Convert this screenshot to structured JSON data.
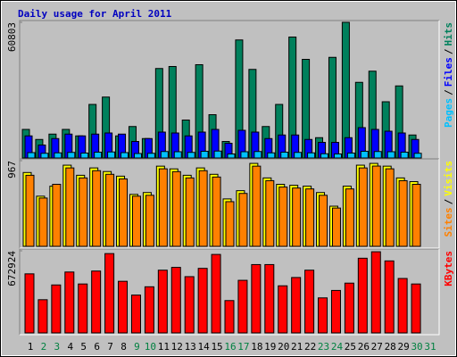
{
  "title": "Daily usage for April 2011",
  "legend_separator": "/",
  "chart_data": [
    {
      "type": "bar",
      "ylim": [
        0,
        60803
      ],
      "yticks": [
        60803
      ],
      "series": [
        {
          "name": "Pages",
          "color": "#00c0ff",
          "values": [
            2400,
            2100,
            2300,
            2500,
            2200,
            2600,
            2700,
            2400,
            2000,
            2100,
            2900,
            2800,
            2500,
            3000,
            3100,
            1800,
            2800,
            2900,
            2300,
            2600,
            2500,
            2300,
            1900,
            1800,
            2200,
            3000,
            2900,
            2800,
            2600,
            2100,
            null
          ]
        },
        {
          "name": "Files",
          "color": "#0000ff",
          "values": [
            9900,
            5800,
            8700,
            10700,
            9900,
            10700,
            11200,
            10700,
            7400,
            8700,
            11600,
            11200,
            9900,
            11600,
            12800,
            6600,
            12400,
            11600,
            8700,
            10300,
            10300,
            8300,
            7000,
            7000,
            9100,
            13600,
            12800,
            12000,
            11200,
            8300,
            null
          ]
        },
        {
          "name": "Hits",
          "color": "#00805c",
          "values": [
            12800,
            8300,
            10700,
            12800,
            9900,
            24000,
            27300,
            9900,
            14100,
            8700,
            40100,
            41000,
            17000,
            41800,
            19400,
            7400,
            52900,
            39700,
            14100,
            24000,
            54200,
            44200,
            9100,
            45100,
            60803,
            33900,
            38900,
            25200,
            32300,
            10300,
            null
          ]
        }
      ]
    },
    {
      "type": "bar",
      "ylim": [
        0,
        967
      ],
      "yticks": [
        967
      ],
      "series": [
        {
          "name": "Sites",
          "color": "#ff8000",
          "values": [
            802,
            545,
            700,
            885,
            772,
            854,
            813,
            761,
            566,
            576,
            875,
            843,
            772,
            854,
            782,
            504,
            597,
            905,
            741,
            669,
            658,
            648,
            576,
            432,
            648,
            885,
            906,
            875,
            741,
            700,
            null
          ]
        },
        {
          "name": "Visits",
          "color": "#ffff00",
          "values": [
            833,
            566,
            679,
            916,
            802,
            885,
            844,
            792,
            586,
            607,
            905,
            874,
            802,
            885,
            813,
            535,
            628,
            936,
            772,
            700,
            689,
            679,
            607,
            453,
            679,
            916,
            936,
            905,
            772,
            730,
            null
          ]
        }
      ]
    },
    {
      "type": "bar",
      "ylim": [
        0,
        672924
      ],
      "yticks": [
        672924
      ],
      "categories": [
        "1",
        "2",
        "3",
        "4",
        "5",
        "6",
        "7",
        "8",
        "9",
        "10",
        "11",
        "12",
        "13",
        "14",
        "15",
        "16",
        "17",
        "18",
        "19",
        "20",
        "21",
        "22",
        "23",
        "24",
        "25",
        "26",
        "27",
        "28",
        "29",
        "30",
        "31"
      ],
      "category_colors": [
        "#000000",
        "#008040",
        "#008040",
        "#000000",
        "#000000",
        "#000000",
        "#000000",
        "#000000",
        "#008040",
        "#008040",
        "#000000",
        "#000000",
        "#000000",
        "#000000",
        "#000000",
        "#008040",
        "#008040",
        "#000000",
        "#000000",
        "#000000",
        "#000000",
        "#000000",
        "#008040",
        "#008040",
        "#000000",
        "#000000",
        "#000000",
        "#000000",
        "#000000",
        "#008040",
        "#008040"
      ],
      "series": [
        {
          "name": "KBytes",
          "color": "#ff0000",
          "values": [
            484000,
            272000,
            393000,
            499000,
            401000,
            507000,
            650000,
            423000,
            310000,
            378000,
            514000,
            537000,
            461000,
            529000,
            643000,
            265000,
            431000,
            560000,
            560000,
            386000,
            454000,
            514000,
            287000,
            348000,
            408000,
            612000,
            665000,
            590000,
            446000,
            401000,
            null
          ]
        }
      ]
    }
  ]
}
